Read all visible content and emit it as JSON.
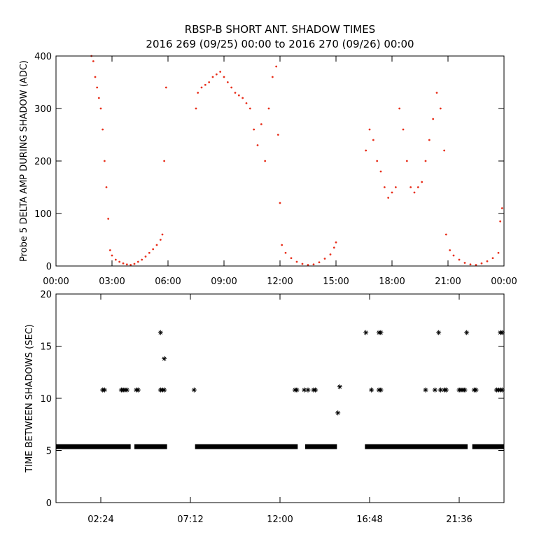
{
  "title_line1": "RBSP-B SHORT ANT. SHADOW TIMES",
  "title_line2": "2016 269 (09/25) 00:00 to 2016 270 (09/26) 00:00",
  "colors": {
    "amp_points": "#e8301c",
    "interval_points": "#000000",
    "axes": "#000000"
  },
  "chart_data": [
    {
      "type": "scatter",
      "ylabel": "Probe 5 DELTA AMP DURING SHADOW (ADC)",
      "xlabel": "",
      "xlim": [
        "00:00",
        "24:00"
      ],
      "ylim": [
        0,
        400
      ],
      "x_unit": "hours",
      "x_ticks": [
        "00:00",
        "03:00",
        "06:00",
        "09:00",
        "12:00",
        "15:00",
        "18:00",
        "21:00",
        "00:00"
      ],
      "y_ticks": [
        "0",
        "100",
        "200",
        "300",
        "400"
      ],
      "marker": "dot",
      "series_color": "#e8301c",
      "points": [
        [
          1.9,
          400
        ],
        [
          2.0,
          390
        ],
        [
          2.1,
          360
        ],
        [
          2.2,
          340
        ],
        [
          2.3,
          320
        ],
        [
          2.4,
          300
        ],
        [
          2.5,
          260
        ],
        [
          2.6,
          200
        ],
        [
          2.7,
          150
        ],
        [
          2.8,
          90
        ],
        [
          2.9,
          30
        ],
        [
          3.0,
          20
        ],
        [
          3.2,
          12
        ],
        [
          3.4,
          8
        ],
        [
          3.6,
          5
        ],
        [
          3.8,
          3
        ],
        [
          4.0,
          2
        ],
        [
          4.2,
          4
        ],
        [
          4.4,
          8
        ],
        [
          4.6,
          12
        ],
        [
          4.8,
          18
        ],
        [
          5.0,
          25
        ],
        [
          5.2,
          32
        ],
        [
          5.4,
          40
        ],
        [
          5.6,
          50
        ],
        [
          5.7,
          60
        ],
        [
          5.8,
          200
        ],
        [
          5.9,
          340
        ],
        [
          7.5,
          300
        ],
        [
          7.6,
          330
        ],
        [
          7.8,
          340
        ],
        [
          8.0,
          345
        ],
        [
          8.2,
          350
        ],
        [
          8.4,
          360
        ],
        [
          8.6,
          365
        ],
        [
          8.8,
          370
        ],
        [
          9.0,
          360
        ],
        [
          9.2,
          350
        ],
        [
          9.4,
          340
        ],
        [
          9.6,
          330
        ],
        [
          9.8,
          325
        ],
        [
          10.0,
          320
        ],
        [
          10.2,
          310
        ],
        [
          10.4,
          300
        ],
        [
          10.6,
          260
        ],
        [
          10.8,
          230
        ],
        [
          11.0,
          270
        ],
        [
          11.2,
          200
        ],
        [
          11.4,
          300
        ],
        [
          11.6,
          360
        ],
        [
          11.8,
          380
        ],
        [
          11.9,
          250
        ],
        [
          12.0,
          120
        ],
        [
          12.1,
          40
        ],
        [
          12.3,
          25
        ],
        [
          12.6,
          15
        ],
        [
          12.9,
          8
        ],
        [
          13.2,
          4
        ],
        [
          13.5,
          2
        ],
        [
          13.8,
          3
        ],
        [
          14.1,
          7
        ],
        [
          14.4,
          14
        ],
        [
          14.7,
          22
        ],
        [
          14.9,
          35
        ],
        [
          15.0,
          45
        ],
        [
          16.6,
          220
        ],
        [
          16.8,
          260
        ],
        [
          17.0,
          240
        ],
        [
          17.2,
          200
        ],
        [
          17.4,
          180
        ],
        [
          17.6,
          150
        ],
        [
          17.8,
          130
        ],
        [
          18.0,
          140
        ],
        [
          18.2,
          150
        ],
        [
          18.4,
          300
        ],
        [
          18.6,
          260
        ],
        [
          18.8,
          200
        ],
        [
          19.0,
          150
        ],
        [
          19.2,
          140
        ],
        [
          19.4,
          150
        ],
        [
          19.6,
          160
        ],
        [
          19.8,
          200
        ],
        [
          20.0,
          240
        ],
        [
          20.2,
          280
        ],
        [
          20.4,
          330
        ],
        [
          20.6,
          300
        ],
        [
          20.8,
          220
        ],
        [
          20.9,
          60
        ],
        [
          21.1,
          30
        ],
        [
          21.3,
          20
        ],
        [
          21.6,
          12
        ],
        [
          21.9,
          6
        ],
        [
          22.2,
          3
        ],
        [
          22.5,
          2
        ],
        [
          22.8,
          5
        ],
        [
          23.1,
          9
        ],
        [
          23.4,
          15
        ],
        [
          23.7,
          25
        ],
        [
          23.8,
          85
        ],
        [
          23.9,
          110
        ]
      ]
    },
    {
      "type": "scatter",
      "ylabel": "TIME BETWEEN SHADOWS (SEC)",
      "xlabel": "",
      "xlim": [
        "00:00",
        "24:00"
      ],
      "ylim": [
        0,
        20
      ],
      "x_unit": "hours",
      "x_ticks": [
        "02:24",
        "07:12",
        "12:00",
        "16:48",
        "21:36"
      ],
      "y_ticks": [
        "0",
        "5",
        "10",
        "15",
        "20"
      ],
      "marker": "asterisk",
      "series_color": "#000000",
      "bands": [
        {
          "x": [
            0.0,
            4.0
          ],
          "y": 5.4
        },
        {
          "x": [
            4.2,
            5.95
          ],
          "y": 5.4
        },
        {
          "x": [
            7.45,
            12.95
          ],
          "y": 5.4
        },
        {
          "x": [
            13.35,
            15.05
          ],
          "y": 5.4
        },
        {
          "x": [
            16.55,
            22.05
          ],
          "y": 5.4
        },
        {
          "x": [
            22.3,
            24.0
          ],
          "y": 5.4
        }
      ],
      "points": [
        [
          2.5,
          10.8
        ],
        [
          2.6,
          10.8
        ],
        [
          3.5,
          10.8
        ],
        [
          3.6,
          10.8
        ],
        [
          3.7,
          10.8
        ],
        [
          3.8,
          10.8
        ],
        [
          4.3,
          10.8
        ],
        [
          4.4,
          10.8
        ],
        [
          5.6,
          10.8
        ],
        [
          5.7,
          10.8
        ],
        [
          5.8,
          10.8
        ],
        [
          5.6,
          16.3
        ],
        [
          5.8,
          13.8
        ],
        [
          7.4,
          10.8
        ],
        [
          12.8,
          10.8
        ],
        [
          12.9,
          10.8
        ],
        [
          13.3,
          10.8
        ],
        [
          13.5,
          10.8
        ],
        [
          13.8,
          10.8
        ],
        [
          13.9,
          10.8
        ],
        [
          15.2,
          11.1
        ],
        [
          15.1,
          8.6
        ],
        [
          16.6,
          16.3
        ],
        [
          16.9,
          10.8
        ],
        [
          17.3,
          10.8
        ],
        [
          17.4,
          10.8
        ],
        [
          17.3,
          16.3
        ],
        [
          17.4,
          16.3
        ],
        [
          19.8,
          10.8
        ],
        [
          20.3,
          10.8
        ],
        [
          20.5,
          16.3
        ],
        [
          20.6,
          10.8
        ],
        [
          20.8,
          10.8
        ],
        [
          20.9,
          10.8
        ],
        [
          21.6,
          10.8
        ],
        [
          21.7,
          10.8
        ],
        [
          21.8,
          10.8
        ],
        [
          21.9,
          10.8
        ],
        [
          22.0,
          16.3
        ],
        [
          22.4,
          10.8
        ],
        [
          22.5,
          10.8
        ],
        [
          23.6,
          10.8
        ],
        [
          23.7,
          10.8
        ],
        [
          23.8,
          10.8
        ],
        [
          23.9,
          10.8
        ],
        [
          23.8,
          16.3
        ],
        [
          23.9,
          16.3
        ]
      ]
    }
  ]
}
